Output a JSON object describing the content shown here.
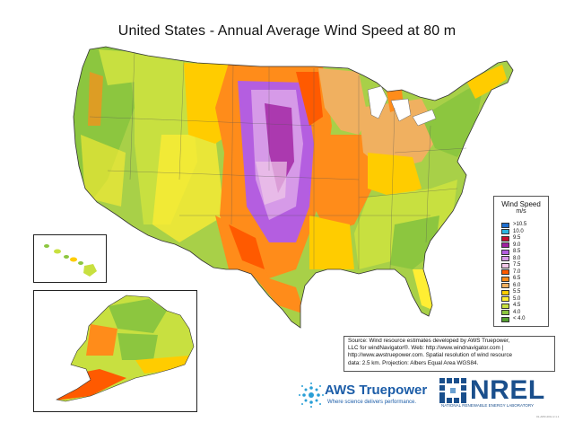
{
  "title": "United States - Annual Average Wind Speed at 80 m",
  "legend": {
    "title": "Wind Speed",
    "unit": "m/s",
    "entries": [
      {
        "label": ">10.5",
        "color": "#1e6fd0"
      },
      {
        "label": "10.0",
        "color": "#2cb6e0"
      },
      {
        "label": "9.5",
        "color": "#c8102e"
      },
      {
        "label": "9.0",
        "color": "#a020a0"
      },
      {
        "label": "8.5",
        "color": "#b45ee0"
      },
      {
        "label": "8.0",
        "color": "#d69ae8"
      },
      {
        "label": "7.5",
        "color": "#f0c8e8"
      },
      {
        "label": "7.0",
        "color": "#ff5a00"
      },
      {
        "label": "6.5",
        "color": "#ff8c1a"
      },
      {
        "label": "6.0",
        "color": "#f0b060"
      },
      {
        "label": "5.5",
        "color": "#ffcc00"
      },
      {
        "label": "5.0",
        "color": "#ffee33"
      },
      {
        "label": "4.5",
        "color": "#c8e040"
      },
      {
        "label": "4.0",
        "color": "#8cc63f"
      },
      {
        "label": "< 4.0",
        "color": "#55a030"
      }
    ]
  },
  "source": {
    "lines": [
      "Source: Wind resource estimates developed by AWS Truepower,",
      "LLC for windNavigator®. Web: http://www.windnavigator.com |",
      "http://www.awstruepower.com. Spatial resolution of wind resource",
      "data: 2.5 km. Projection: Albers Equal Area WGS84."
    ]
  },
  "logos": {
    "aws_name": "AWS Truepower",
    "aws_tagline": "Where science delivers performance.",
    "nrel_name": "NREL",
    "nrel_tagline": "NATIONAL RENEWABLE ENERGY LABORATORY"
  },
  "footnote": "01-APR-2011 2.1.1"
}
